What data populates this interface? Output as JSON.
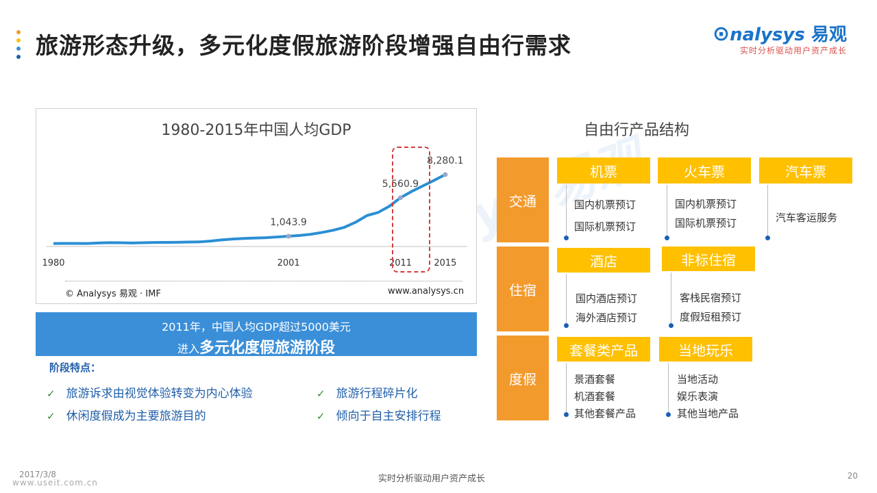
{
  "header": {
    "title": "旅游形态升级，多元化度假旅游阶段增强自由行需求",
    "dot_colors": [
      "#f39a2d",
      "#ffc000",
      "#3b8fd8",
      "#1f5ea8"
    ]
  },
  "logo": {
    "main": "nalysys",
    "main_cn": "易观",
    "tagline": "实时分析驱动用户资产成长"
  },
  "watermark": "Analysys 易观",
  "chart": {
    "chart_data": {
      "type": "line",
      "title": "1980-2015年中国人均GDP",
      "x": [
        1980,
        1981,
        1982,
        1983,
        1984,
        1985,
        1986,
        1987,
        1988,
        1989,
        1990,
        1991,
        1992,
        1993,
        1994,
        1995,
        1996,
        1997,
        1998,
        1999,
        2000,
        2001,
        2002,
        2003,
        2004,
        2005,
        2006,
        2007,
        2008,
        2009,
        2010,
        2011,
        2012,
        2013,
        2014,
        2015
      ],
      "values": [
        195,
        197,
        203,
        195,
        251,
        294,
        282,
        252,
        284,
        311,
        317,
        333,
        366,
        377,
        473,
        610,
        709,
        782,
        829,
        873,
        959,
        1043.9,
        1135,
        1274,
        1490,
        1753,
        2099,
        2694,
        3468,
        3832,
        4560,
        5560.9,
        6300,
        6950,
        7600,
        8280.1
      ],
      "xlim": [
        1980,
        2015
      ],
      "ylim": [
        0,
        9000
      ],
      "tick_labels": [
        "1980",
        "2001",
        "2011",
        "2015"
      ],
      "data_labels": [
        {
          "x": 2001,
          "label": "1,043.9"
        },
        {
          "x": 2011,
          "label": "5,560.9"
        },
        {
          "x": 2015,
          "label": "8,280.1"
        }
      ],
      "series_color": "#2a8fd4",
      "grid": false
    },
    "source": "© Analysys 易观 · IMF",
    "url": "www.analysys.cn"
  },
  "banner": {
    "line1": "2011年，中国人均GDP超过5000美元",
    "line2_prefix": "进入",
    "line2_bold": "多元化度假旅游阶段"
  },
  "features": {
    "heading": "阶段特点：",
    "check": "✓",
    "items": [
      "旅游诉求由视觉体验转变为内心体验",
      "休闲度假成为主要旅游目的",
      "旅游行程碎片化",
      "倾向于自主安排行程"
    ]
  },
  "structure": {
    "title": "自由行产品结构",
    "categories": [
      "交通",
      "住宿",
      "度假"
    ],
    "groups": [
      {
        "tag": "机票",
        "items": [
          "国内机票预订",
          "国际机票预订"
        ]
      },
      {
        "tag": "火车票",
        "items": [
          "国内机票预订",
          "国际机票预订"
        ]
      },
      {
        "tag": "汽车票",
        "items": [
          "汽车客运服务"
        ]
      },
      {
        "tag": "酒店",
        "items": [
          "国内酒店预订",
          "海外酒店预订"
        ]
      },
      {
        "tag": "非标住宿",
        "items": [
          "客栈民宿预订",
          "度假短租预订"
        ]
      },
      {
        "tag": "套餐类产品",
        "items": [
          "景酒套餐",
          "机酒套餐",
          "其他套餐产品"
        ]
      },
      {
        "tag": "当地玩乐",
        "items": [
          "当地活动",
          "娱乐表演",
          "其他当地产品"
        ]
      }
    ]
  },
  "footer": {
    "date": "2017/3/8",
    "site": "www.useit.com.cn",
    "center": "实时分析驱动用户资产成长",
    "page": "20"
  }
}
